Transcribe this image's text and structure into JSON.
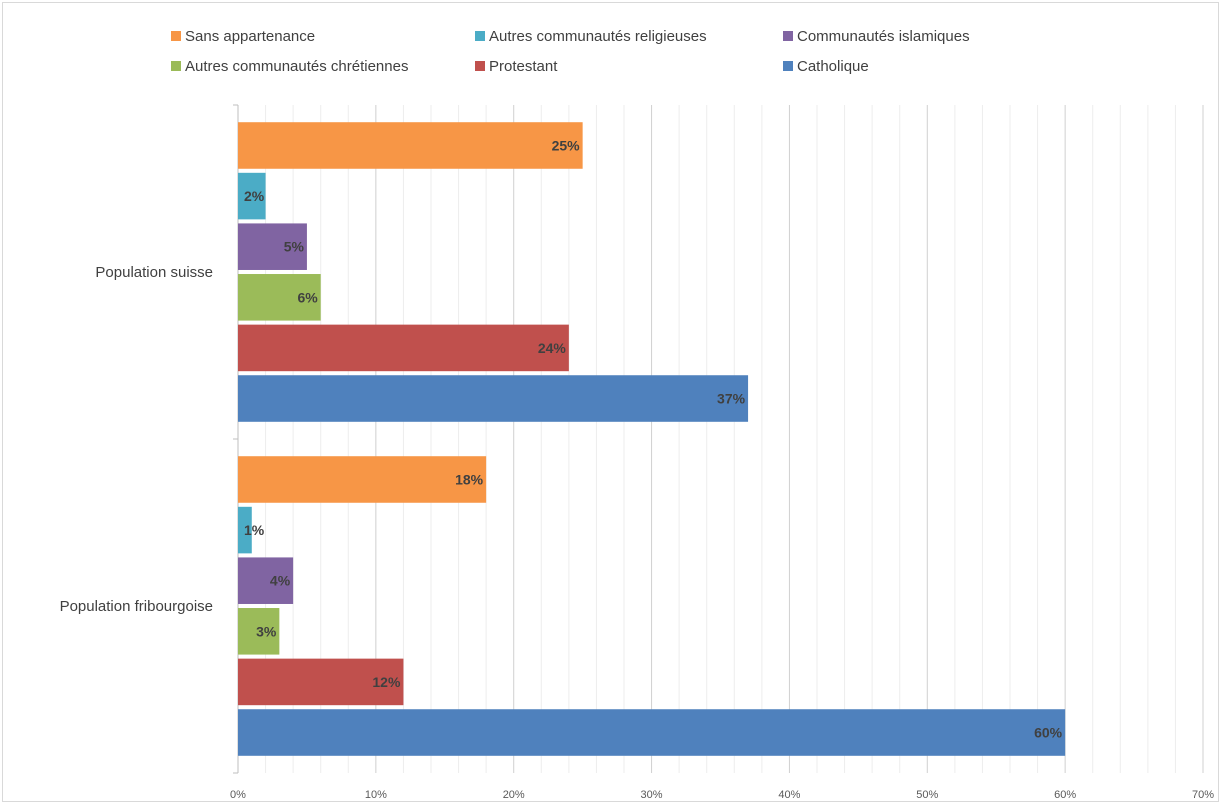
{
  "chart_data": {
    "type": "bar",
    "orientation": "horizontal",
    "title": "",
    "xlabel": "",
    "ylabel": "",
    "categories": [
      "Population suisse",
      "Population fribourgoise"
    ],
    "series": [
      {
        "name": "Sans appartenance",
        "color": "#F79646",
        "values": [
          25,
          18
        ],
        "labels": [
          "25%",
          "18%"
        ]
      },
      {
        "name": "Autres communautés religieuses",
        "color": "#4BACC6",
        "values": [
          2,
          1
        ],
        "labels": [
          "2%",
          "1%"
        ]
      },
      {
        "name": "Communautés islamiques",
        "color": "#8064A2",
        "values": [
          5,
          4
        ],
        "labels": [
          "5%",
          "4%"
        ]
      },
      {
        "name": "Autres communautés chrétiennes",
        "color": "#9BBB59",
        "values": [
          6,
          3
        ],
        "labels": [
          "6%",
          "3%"
        ]
      },
      {
        "name": "Protestant",
        "color": "#C0504D",
        "values": [
          24,
          12
        ],
        "labels": [
          "24%",
          "12%"
        ]
      },
      {
        "name": "Catholique",
        "color": "#4F81BD",
        "values": [
          37,
          60
        ],
        "labels": [
          "37%",
          "60%"
        ]
      }
    ],
    "xlim": [
      0,
      70
    ],
    "x_ticks": [
      0,
      10,
      20,
      30,
      40,
      50,
      60,
      70
    ],
    "x_tick_labels": [
      "0%",
      "10%",
      "20%",
      "30%",
      "40%",
      "50%",
      "60%",
      "70%"
    ],
    "grid": true,
    "legend": "top"
  }
}
